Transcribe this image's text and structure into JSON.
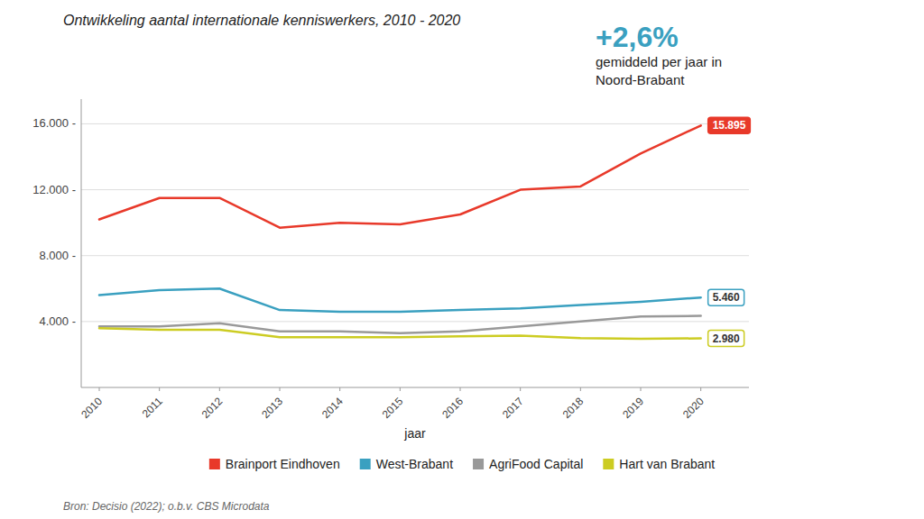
{
  "chart_data": {
    "type": "line",
    "title": "Ontwikkeling aantal internationale kenniswerkers, 2010 - 2020",
    "x_label": "jaar",
    "annotations": [
      {
        "text": "+2,6%",
        "color": "#3aa0c0"
      },
      {
        "text": "gemiddeld per jaar in\nNoord-Brabant"
      },
      {
        "text": "Bron: Decisio (2022); o.b.v. CBS Microdata"
      }
    ],
    "x": [
      2010,
      2011,
      2012,
      2013,
      2014,
      2015,
      2016,
      2017,
      2018,
      2019,
      2020
    ],
    "xlim": [
      2009.7,
      2020.8
    ],
    "xticks": [
      2010,
      2011,
      2012,
      2013,
      2014,
      2015,
      2016,
      2017,
      2018,
      2019,
      2020
    ],
    "ylim": [
      0,
      17500
    ],
    "yticks": [
      {
        "value": 4000,
        "label": "4.000 -"
      },
      {
        "value": 8000,
        "label": "8.000 -"
      },
      {
        "value": 12000,
        "label": "12.000 -"
      },
      {
        "value": 16000,
        "label": "16.000 -"
      }
    ],
    "grid": true,
    "legend": "bottom",
    "series": [
      {
        "name": "Brainport Eindhoven",
        "color": "#e8392a",
        "values": [
          10200,
          11500,
          11500,
          9700,
          10000,
          9900,
          10500,
          12000,
          12200,
          14200,
          15895
        ],
        "value_labels": [
          null,
          null,
          null,
          null,
          null,
          null,
          null,
          null,
          null,
          null,
          "15.895"
        ]
      },
      {
        "name": "West-Brabant",
        "color": "#3aa0c0",
        "values": [
          5600,
          5900,
          6000,
          4700,
          4600,
          4600,
          4700,
          4800,
          5000,
          5200,
          5460
        ],
        "value_labels": [
          null,
          null,
          null,
          null,
          null,
          null,
          null,
          null,
          null,
          null,
          "5.460"
        ]
      },
      {
        "name": "AgriFood Capital",
        "color": "#999999",
        "values": [
          3700,
          3700,
          3900,
          3400,
          3400,
          3300,
          3400,
          3700,
          4000,
          4300,
          4350
        ]
      },
      {
        "name": "Hart van Brabant",
        "color": "#cccc22",
        "values": [
          3600,
          3500,
          3500,
          3050,
          3050,
          3050,
          3100,
          3150,
          3000,
          2950,
          2980
        ],
        "value_labels": [
          null,
          null,
          null,
          null,
          null,
          null,
          null,
          null,
          null,
          null,
          "2.980"
        ]
      }
    ]
  }
}
